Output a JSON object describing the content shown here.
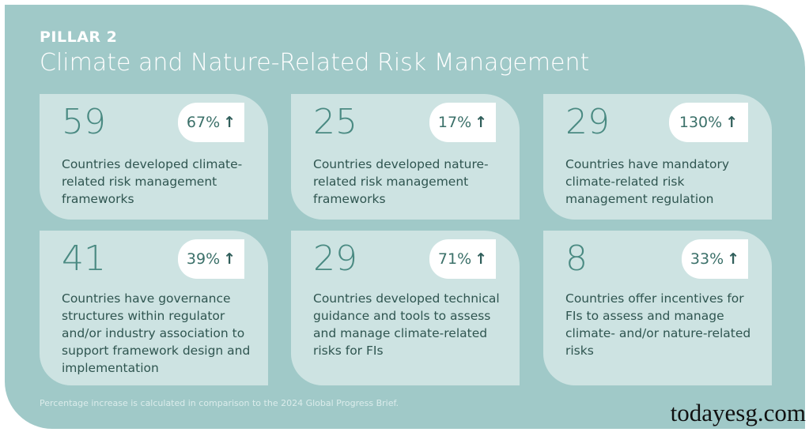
{
  "header": {
    "kicker": "PILLAR 2",
    "title": "Climate and Nature-Related Risk Management"
  },
  "cards": [
    {
      "number": "59",
      "change": "67%",
      "description": "Countries developed climate-related risk management frameworks"
    },
    {
      "number": "25",
      "change": "17%",
      "description": "Countries developed nature-related risk management frameworks"
    },
    {
      "number": "29",
      "change": "130%",
      "description": "Countries have mandatory climate-related risk management regulation"
    },
    {
      "number": "41",
      "change": "39%",
      "description": "Countries have governance structures within regulator and/or industry association to support framework design and implementation"
    },
    {
      "number": "29",
      "change": "71%",
      "description": "Countries developed technical guidance and tools to assess and manage climate-related risks for FIs"
    },
    {
      "number": "8",
      "change": "33%",
      "description": "Countries offer incentives for FIs to assess and manage climate- and/or nature-related risks"
    }
  ],
  "arrow": "↑",
  "footnote": "Percentage increase is calculated in comparison to the 2024 Global Progress Brief.",
  "watermark": "todayesg.com"
}
